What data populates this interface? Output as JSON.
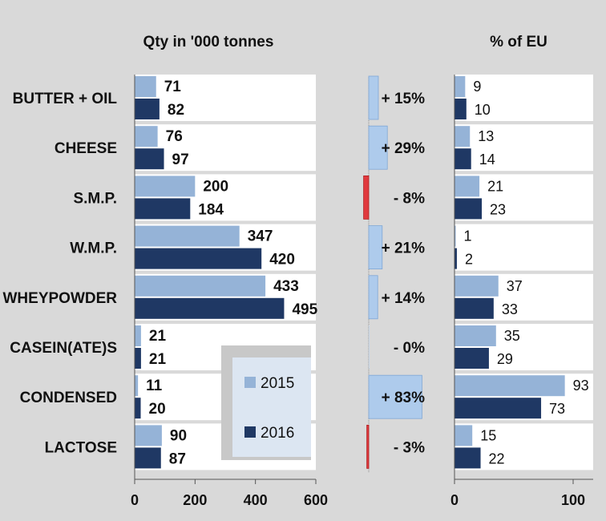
{
  "left_title": "Qty in '000 tonnes",
  "right_title": "% of EU",
  "legend": [
    {
      "label": "2015",
      "color": "#95b3d7"
    },
    {
      "label": "2016",
      "color": "#1f3864"
    }
  ],
  "colors": {
    "y2015": "#95b3d7",
    "y2016": "#1f3864",
    "change_positive": "#aecbec",
    "change_negative": "#e0393e",
    "background": "#d9d9d9",
    "panel": "#ffffff"
  },
  "chart_data": [
    {
      "type": "bar",
      "orientation": "horizontal",
      "title": "Qty in '000 tonnes",
      "categories": [
        "BUTTER + OIL",
        "CHEESE",
        "S.M.P.",
        "W.M.P.",
        "WHEYPOWDER",
        "CASEIN(ATE)S",
        "CONDENSED",
        "LACTOSE"
      ],
      "series": [
        {
          "name": "2015",
          "values": [
            71,
            76,
            200,
            347,
            433,
            21,
            11,
            90
          ]
        },
        {
          "name": "2016",
          "values": [
            82,
            97,
            184,
            420,
            495,
            21,
            20,
            87
          ]
        }
      ],
      "xlim": [
        0,
        600
      ],
      "ticks": [
        0,
        200,
        400,
        600
      ]
    },
    {
      "type": "bar",
      "orientation": "horizontal",
      "title": "",
      "categories": [
        "BUTTER + OIL",
        "CHEESE",
        "S.M.P.",
        "W.M.P.",
        "WHEYPOWDER",
        "CASEIN(ATE)S",
        "CONDENSED",
        "LACTOSE"
      ],
      "values": [
        15,
        29,
        -8,
        21,
        14,
        0,
        83,
        -3
      ],
      "labels": [
        "+ 15%",
        "+ 29%",
        "- 8%",
        "+ 21%",
        "+ 14%",
        "- 0%",
        "+ 83%",
        "- 3%"
      ]
    },
    {
      "type": "bar",
      "orientation": "horizontal",
      "title": "% of EU",
      "categories": [
        "BUTTER + OIL",
        "CHEESE",
        "S.M.P.",
        "W.M.P.",
        "WHEYPOWDER",
        "CASEIN(ATE)S",
        "CONDENSED",
        "LACTOSE"
      ],
      "series": [
        {
          "name": "2015",
          "values": [
            9,
            13,
            21,
            1,
            37,
            35,
            93,
            15
          ]
        },
        {
          "name": "2016",
          "values": [
            10,
            14,
            23,
            2,
            33,
            29,
            73,
            22
          ]
        }
      ],
      "xlim": [
        0,
        120
      ],
      "ticks": [
        0,
        100
      ]
    }
  ]
}
